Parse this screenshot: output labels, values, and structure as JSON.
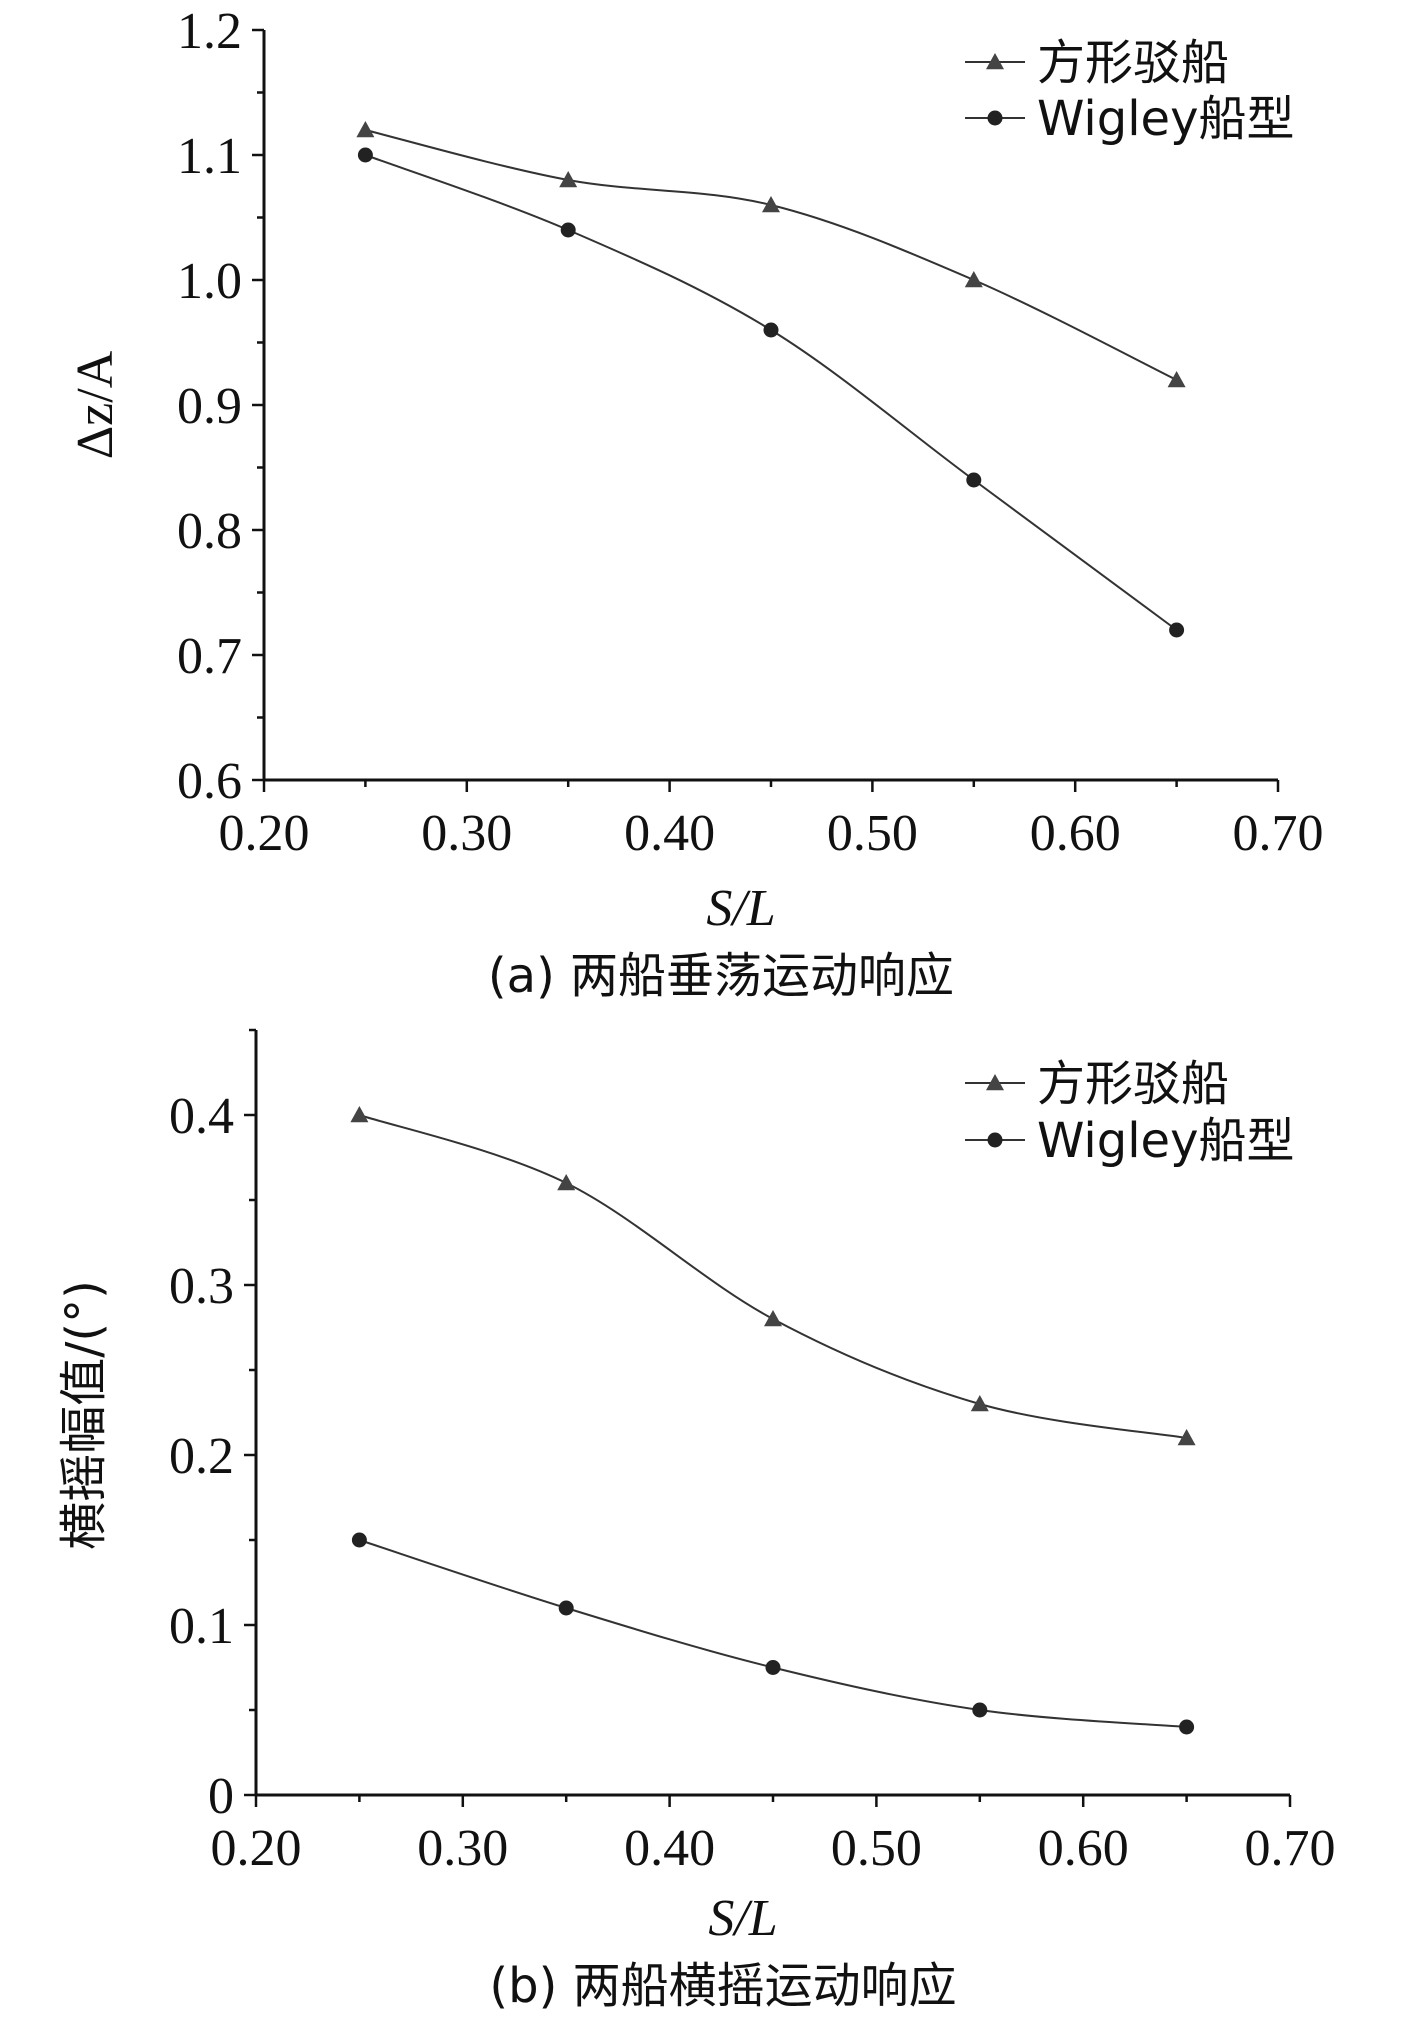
{
  "chart_data": [
    {
      "type": "line",
      "caption": "(a) 两船垂荡运动响应",
      "xlabel": "S/L",
      "ylabel": "Δz/A",
      "xlim": [
        0.2,
        0.7
      ],
      "ylim": [
        0.6,
        1.2
      ],
      "xticks": [
        0.2,
        0.3,
        0.4,
        0.5,
        0.6,
        0.7
      ],
      "xtick_labels": [
        "0.20",
        "0.30",
        "0.40",
        "0.50",
        "0.60",
        "0.70"
      ],
      "yticks": [
        0.6,
        0.7,
        0.8,
        0.9,
        1.0,
        1.1,
        1.2
      ],
      "ytick_labels": [
        "0.6",
        "0.7",
        "0.8",
        "0.9",
        "1.0",
        "1.1",
        "1.2"
      ],
      "legend_position": "top-right",
      "x": [
        0.25,
        0.35,
        0.45,
        0.55,
        0.65
      ],
      "series": [
        {
          "name": "方形驳船",
          "marker": "triangle",
          "values": [
            1.12,
            1.08,
            1.06,
            1.0,
            0.92
          ]
        },
        {
          "name": "Wigley船型",
          "marker": "circle",
          "values": [
            1.1,
            1.04,
            0.96,
            0.84,
            0.72
          ]
        }
      ]
    },
    {
      "type": "line",
      "caption": "(b) 两船横摇运动响应",
      "xlabel": "S/L",
      "ylabel": "横摇幅值/(°)",
      "xlim": [
        0.2,
        0.7
      ],
      "ylim": [
        0,
        0.45
      ],
      "xticks": [
        0.2,
        0.3,
        0.4,
        0.5,
        0.6,
        0.7
      ],
      "xtick_labels": [
        "0.20",
        "0.30",
        "0.40",
        "0.50",
        "0.60",
        "0.70"
      ],
      "yticks": [
        0,
        0.1,
        0.2,
        0.3,
        0.4
      ],
      "ytick_labels": [
        "0",
        "0.1",
        "0.2",
        "0.3",
        "0.4"
      ],
      "legend_position": "top-right",
      "x": [
        0.25,
        0.35,
        0.45,
        0.55,
        0.65
      ],
      "series": [
        {
          "name": "方形驳船",
          "marker": "triangle",
          "values": [
            0.4,
            0.36,
            0.28,
            0.23,
            0.21
          ]
        },
        {
          "name": "Wigley船型",
          "marker": "circle",
          "values": [
            0.15,
            0.11,
            0.075,
            0.05,
            0.04
          ]
        }
      ]
    }
  ]
}
